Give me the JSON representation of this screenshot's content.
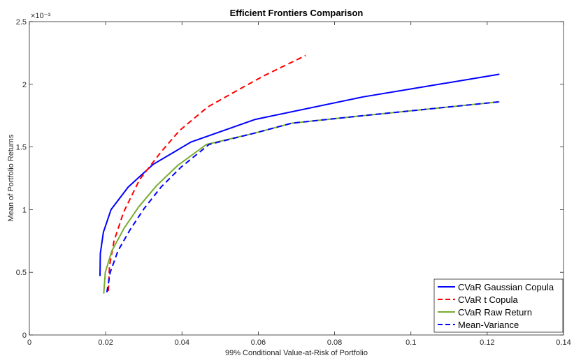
{
  "chart_data": {
    "type": "line",
    "title": "Efficient Frontiers Comparison",
    "xlabel": "99% Conditional Value-at-Risk of Portfolio",
    "ylabel": "Mean of Portfolio Returns",
    "y_exponent_label": "×10⁻³",
    "xlim": [
      0,
      0.14
    ],
    "ylim": [
      0,
      2.5
    ],
    "xticks": [
      0,
      0.02,
      0.04,
      0.06,
      0.08,
      0.1,
      0.12,
      0.14
    ],
    "xtick_labels": [
      "0",
      "0.02",
      "0.04",
      "0.06",
      "0.08",
      "0.1",
      "0.12",
      "0.14"
    ],
    "yticks": [
      0,
      0.5,
      1,
      1.5,
      2,
      2.5
    ],
    "ytick_labels": [
      "0",
      "0.5",
      "1",
      "1.5",
      "2",
      "2.5"
    ],
    "grid": false,
    "legend_position": "bottom-right",
    "series": [
      {
        "name": "CVaR Gaussian Copula",
        "color": "#0000ff",
        "dash": "solid",
        "x": [
          0.0185,
          0.0186,
          0.0194,
          0.0214,
          0.0259,
          0.0324,
          0.0424,
          0.0592,
          0.0875,
          0.1232
        ],
        "y": [
          0.47,
          0.65,
          0.82,
          1.0,
          1.18,
          1.36,
          1.54,
          1.72,
          1.9,
          2.08
        ]
      },
      {
        "name": "CVaR t Copula",
        "color": "#ff0000",
        "dash": "dashed",
        "x": [
          0.0207,
          0.021,
          0.0222,
          0.0247,
          0.0289,
          0.0345,
          0.0393,
          0.0468,
          0.0556,
          0.0616,
          0.0724
        ],
        "y": [
          0.35,
          0.55,
          0.75,
          0.98,
          1.24,
          1.46,
          1.63,
          1.82,
          1.97,
          2.07,
          2.23
        ]
      },
      {
        "name": "CVaR Raw Return",
        "color": "#77ac30",
        "dash": "solid",
        "x": [
          0.0195,
          0.0199,
          0.0216,
          0.0248,
          0.0286,
          0.0333,
          0.0388,
          0.0464,
          0.059,
          0.0688,
          0.0875,
          0.1232
        ],
        "y": [
          0.33,
          0.5,
          0.67,
          0.85,
          1.02,
          1.19,
          1.35,
          1.52,
          1.61,
          1.69,
          1.75,
          1.86
        ]
      },
      {
        "name": "Mean-Variance",
        "color": "#0000ff",
        "dash": "dashed",
        "x": [
          0.0203,
          0.0212,
          0.0232,
          0.0264,
          0.0301,
          0.0345,
          0.0398,
          0.0471,
          0.059,
          0.0688,
          0.0875,
          0.1232
        ],
        "y": [
          0.34,
          0.5,
          0.67,
          0.84,
          1.01,
          1.18,
          1.34,
          1.52,
          1.61,
          1.69,
          1.75,
          1.86
        ]
      }
    ]
  }
}
